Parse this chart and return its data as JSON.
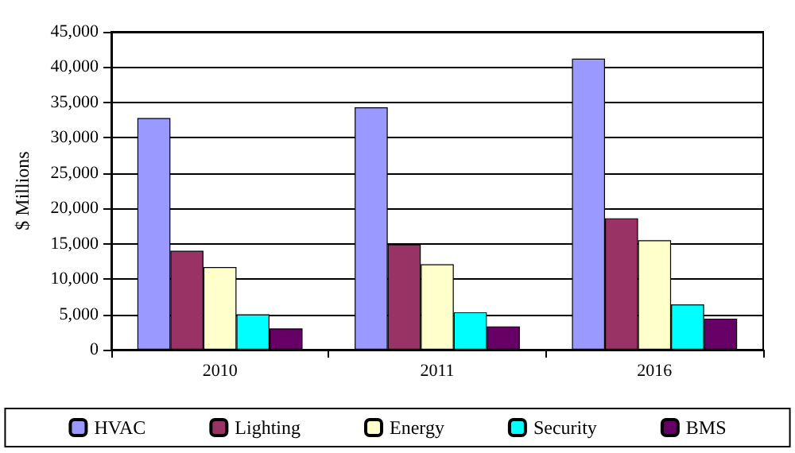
{
  "chart_data": {
    "type": "bar",
    "ylabel": "$ Millions",
    "categories": [
      "2010",
      "2011",
      "2016"
    ],
    "series": [
      {
        "name": "HVAC",
        "color": "#9999ff",
        "values": [
          32800,
          34300,
          41200
        ]
      },
      {
        "name": "Lighting",
        "color": "#993366",
        "values": [
          14000,
          14900,
          18600
        ]
      },
      {
        "name": "Energy",
        "color": "#ffffcc",
        "values": [
          11700,
          12100,
          15500
        ]
      },
      {
        "name": "Security",
        "color": "#00ffff",
        "values": [
          5000,
          5300,
          6400
        ]
      },
      {
        "name": "BMS",
        "color": "#660066",
        "values": [
          3000,
          3300,
          4400
        ]
      }
    ],
    "ylim": [
      0,
      45000
    ],
    "yticks": [
      0,
      {
        "value": 5000,
        "label": "5,000"
      },
      {
        "value": 10000,
        "label": "10,000"
      },
      {
        "value": 15000,
        "label": "15,000"
      },
      {
        "value": 20000,
        "label": "20,000"
      },
      {
        "value": 25000,
        "label": "25,000"
      },
      {
        "value": 30000,
        "label": "30,000"
      },
      {
        "value": 35000,
        "label": "35,000"
      },
      {
        "value": 40000,
        "label": "40,000"
      },
      {
        "value": 45000,
        "label": "45,000"
      }
    ],
    "grid": "y",
    "legend": "bottom"
  }
}
